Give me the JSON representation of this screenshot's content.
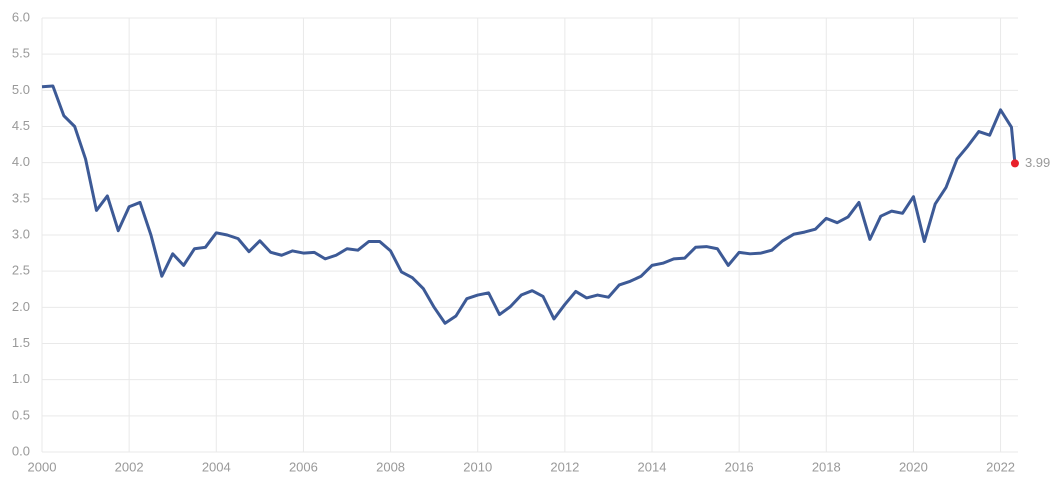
{
  "chart_data": {
    "type": "line",
    "x": [
      2000,
      2000.25,
      2000.5,
      2000.75,
      2001,
      2001.25,
      2001.5,
      2001.75,
      2002,
      2002.25,
      2002.5,
      2002.75,
      2003,
      2003.25,
      2003.5,
      2003.75,
      2004,
      2004.25,
      2004.5,
      2004.75,
      2005,
      2005.25,
      2005.5,
      2005.75,
      2006,
      2006.25,
      2006.5,
      2006.75,
      2007,
      2007.25,
      2007.5,
      2007.75,
      2008,
      2008.25,
      2008.5,
      2008.75,
      2009,
      2009.25,
      2009.5,
      2009.75,
      2010,
      2010.25,
      2010.5,
      2010.75,
      2011,
      2011.25,
      2011.5,
      2011.75,
      2012,
      2012.25,
      2012.5,
      2012.75,
      2013,
      2013.25,
      2013.5,
      2013.75,
      2014,
      2014.25,
      2014.5,
      2014.75,
      2015,
      2015.25,
      2015.5,
      2015.75,
      2016,
      2016.25,
      2016.5,
      2016.75,
      2017,
      2017.25,
      2017.5,
      2017.75,
      2018,
      2018.25,
      2018.5,
      2018.75,
      2019,
      2019.25,
      2019.5,
      2019.75,
      2020,
      2020.25,
      2020.5,
      2020.75,
      2021,
      2021.25,
      2021.5,
      2021.75,
      2022,
      2022.25,
      2022.33
    ],
    "series": [
      {
        "color": "#3d5a96",
        "values": [
          5.05,
          5.06,
          4.65,
          4.5,
          4.05,
          3.34,
          3.54,
          3.06,
          3.39,
          3.45,
          3.0,
          2.43,
          2.74,
          2.58,
          2.81,
          2.83,
          3.03,
          3.0,
          2.95,
          2.77,
          2.92,
          2.76,
          2.72,
          2.78,
          2.75,
          2.76,
          2.67,
          2.72,
          2.81,
          2.79,
          2.91,
          2.91,
          2.78,
          2.49,
          2.41,
          2.26,
          2.0,
          1.78,
          1.88,
          2.12,
          2.17,
          2.2,
          1.9,
          2.01,
          2.17,
          2.23,
          2.15,
          1.84,
          2.04,
          2.22,
          2.13,
          2.17,
          2.14,
          2.31,
          2.36,
          2.43,
          2.58,
          2.61,
          2.67,
          2.68,
          2.83,
          2.84,
          2.81,
          2.58,
          2.76,
          2.74,
          2.75,
          2.79,
          2.92,
          3.01,
          3.04,
          3.08,
          3.23,
          3.17,
          3.25,
          3.45,
          2.94,
          3.26,
          3.33,
          3.3,
          3.53,
          2.91,
          3.43,
          3.66,
          4.05,
          4.23,
          4.43,
          4.38,
          4.73,
          4.49,
          3.99
        ]
      }
    ],
    "highlight_color": "#e8202a",
    "xlim": [
      2000,
      2022.4
    ],
    "xticks": [
      2000,
      2002,
      2004,
      2006,
      2008,
      2010,
      2012,
      2014,
      2016,
      2018,
      2020,
      2022
    ],
    "ylim": [
      0,
      6
    ],
    "yticks": [
      {
        "value": 0,
        "label": "0.0"
      },
      0.5,
      {
        "value": 1,
        "label": "1.0"
      },
      1.5,
      {
        "value": 2,
        "label": "2.0"
      },
      2.5,
      {
        "value": 3,
        "label": "3.0"
      },
      3.5,
      {
        "value": 4,
        "label": "4.0"
      },
      4.5,
      {
        "value": 5,
        "label": "5.0"
      },
      5.5,
      {
        "value": 6,
        "label": "6.0"
      }
    ],
    "grid": true
  }
}
